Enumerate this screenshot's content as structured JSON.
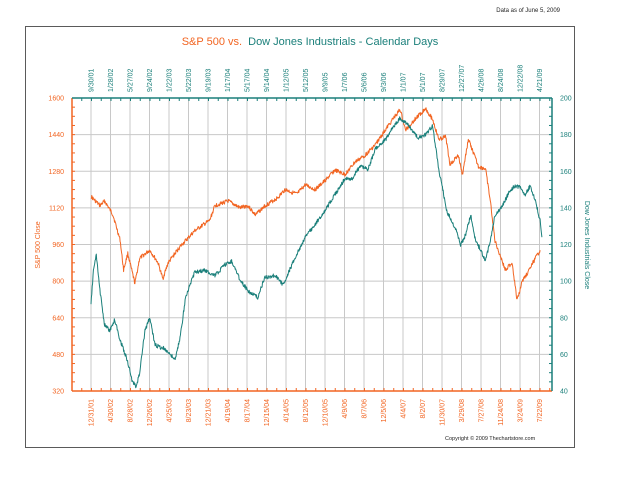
{
  "header": {
    "as_of": "Data as of June 5, 2009",
    "copyright": "Copyright © 2009 Thechartstore.com"
  },
  "colors": {
    "sp500": "#f26522",
    "dow": "#1a7f7a",
    "grid": "#c8c8c8",
    "frame": "#5a5a5a"
  },
  "chart_data": {
    "type": "line",
    "title_part1": "S&P 500 vs.",
    "title_part2": "Dow Jones Industrials - Calendar Days",
    "ylabel_left": "S&P 500 Close",
    "ylabel_right": "Dow Jones Industrials Close",
    "grid": true,
    "x_unit": "decimal year",
    "xlim": [
      2001.43,
      2009.52
    ],
    "ylim_left": [
      320,
      1600
    ],
    "ylim_right": [
      40,
      200
    ],
    "yticks_left": [
      320,
      480,
      640,
      800,
      960,
      1120,
      1280,
      1440,
      1600
    ],
    "yticks_right": [
      40,
      60,
      80,
      100,
      120,
      140,
      160,
      180,
      200
    ],
    "top_tick_labels": [
      "9/30/01",
      "1/28/02",
      "5/27/02",
      "9/24/02",
      "1/22/03",
      "5/22/03",
      "9/19/03",
      "1/17/04",
      "5/17/04",
      "9/14/04",
      "1/12/05",
      "5/12/05",
      "9/9/05",
      "1/7/06",
      "5/6/06",
      "9/3/06",
      "1/1/07",
      "5/1/07",
      "8/29/07",
      "12/27/07",
      "4/26/08",
      "8/24/08",
      "12/22/08",
      "4/21/09"
    ],
    "bottom_tick_labels": [
      "12/31/01",
      "4/30/02",
      "8/28/02",
      "12/26/02",
      "4/25/03",
      "8/23/03",
      "12/21/03",
      "4/19/04",
      "8/17/04",
      "12/15/04",
      "4/14/05",
      "8/12/05",
      "12/10/05",
      "4/9/06",
      "8/7/06",
      "12/5/06",
      "4/4/07",
      "8/2/07",
      "11/30/07",
      "3/29/08",
      "7/27/08",
      "11/24/08",
      "3/24/09",
      "7/22/09"
    ],
    "series": [
      {
        "name": "S&P 500",
        "axis": "left",
        "x": [
          2001.75,
          2001.9,
          2001.98,
          2002.12,
          2002.24,
          2002.3,
          2002.37,
          2002.49,
          2002.57,
          2002.74,
          2002.88,
          2002.96,
          2003.05,
          2003.25,
          2003.5,
          2003.75,
          2003.84,
          2004.06,
          2004.26,
          2004.39,
          2004.52,
          2004.69,
          2004.9,
          2005.02,
          2005.22,
          2005.36,
          2005.53,
          2005.7,
          2005.86,
          2006.03,
          2006.2,
          2006.37,
          2006.54,
          2006.71,
          2006.83,
          2006.96,
          2007.05,
          2007.22,
          2007.39,
          2007.51,
          2007.61,
          2007.73,
          2007.8,
          2007.94,
          2008.01,
          2008.11,
          2008.28,
          2008.4,
          2008.48,
          2008.56,
          2008.65,
          2008.73,
          2008.85,
          2008.93,
          2009.02,
          2009.15,
          2009.24,
          2009.32
        ],
        "values": [
          1170,
          1130,
          1150,
          1090,
          980,
          850,
          920,
          790,
          900,
          935,
          880,
          810,
          880,
          950,
          1020,
          1065,
          1130,
          1150,
          1120,
          1130,
          1090,
          1130,
          1165,
          1200,
          1180,
          1220,
          1200,
          1240,
          1285,
          1265,
          1320,
          1350,
          1395,
          1460,
          1505,
          1550,
          1460,
          1510,
          1555,
          1505,
          1420,
          1430,
          1310,
          1350,
          1265,
          1420,
          1300,
          1290,
          1150,
          975,
          910,
          850,
          880,
          715,
          800,
          855,
          900,
          935
        ]
      },
      {
        "name": "Dow Jones Industrials",
        "axis": "right",
        "x": [
          2001.75,
          2001.79,
          2001.84,
          2001.9,
          2001.98,
          2002.07,
          2002.15,
          2002.24,
          2002.36,
          2002.44,
          2002.51,
          2002.57,
          2002.66,
          2002.74,
          2002.83,
          2003.0,
          2003.17,
          2003.25,
          2003.35,
          2003.5,
          2003.67,
          2003.84,
          2004.01,
          2004.12,
          2004.26,
          2004.39,
          2004.56,
          2004.68,
          2004.85,
          2004.99,
          2005.11,
          2005.24,
          2005.36,
          2005.53,
          2005.7,
          2005.86,
          2006.03,
          2006.15,
          2006.29,
          2006.42,
          2006.54,
          2006.71,
          2006.84,
          2006.96,
          2007.1,
          2007.27,
          2007.39,
          2007.51,
          2007.61,
          2007.68,
          2007.74,
          2007.81,
          2007.9,
          2007.98,
          2008.06,
          2008.15,
          2008.23,
          2008.32,
          2008.4,
          2008.48,
          2008.56,
          2008.65,
          2008.73,
          2008.82,
          2008.9,
          2008.98,
          2009.07,
          2009.15,
          2009.24,
          2009.32,
          2009.35
        ],
        "values": [
          87,
          106,
          114,
          95,
          76,
          73,
          79,
          68,
          57,
          46,
          42,
          50,
          73,
          80,
          65,
          63,
          57,
          69,
          92,
          105,
          106,
          103,
          109,
          111,
          101,
          95,
          91,
          102,
          103,
          98,
          107,
          116,
          124,
          131,
          139,
          147,
          156,
          156,
          163,
          161,
          172,
          177,
          184,
          189,
          185,
          178,
          180,
          185,
          161,
          150,
          139,
          134,
          128,
          120,
          125,
          136,
          122,
          117,
          111,
          122,
          136,
          139,
          144,
          150,
          152,
          151,
          147,
          152,
          144,
          133,
          124
        ]
      }
    ]
  }
}
